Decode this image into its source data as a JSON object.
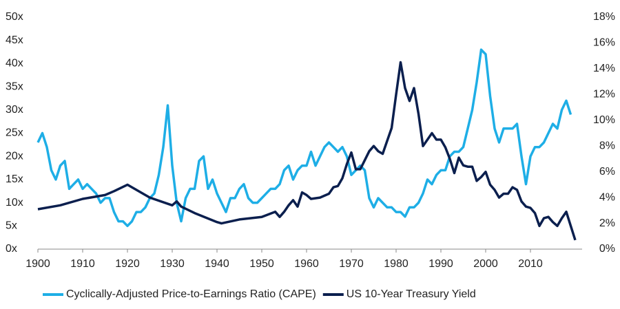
{
  "chart_data": {
    "type": "line",
    "xlim": [
      1900,
      2020
    ],
    "xticks": [
      1900,
      1910,
      1920,
      1930,
      1940,
      1950,
      1960,
      1970,
      1980,
      1990,
      2000,
      2010
    ],
    "ylim": [
      0,
      50
    ],
    "yticks": [
      {
        "value": 0,
        "label": "0x"
      },
      {
        "value": 5,
        "label": "5x"
      },
      {
        "value": 10,
        "label": "10x"
      },
      {
        "value": 15,
        "label": "15x"
      },
      {
        "value": 20,
        "label": "20x"
      },
      {
        "value": 25,
        "label": "25x"
      },
      {
        "value": 30,
        "label": "30x"
      },
      {
        "value": 35,
        "label": "35x"
      },
      {
        "value": 40,
        "label": "40x"
      },
      {
        "value": 45,
        "label": "45x"
      },
      {
        "value": 50,
        "label": "50x"
      }
    ],
    "y2lim": [
      0,
      18
    ],
    "y2ticks": [
      {
        "value": 0,
        "label": "0%"
      },
      {
        "value": 2,
        "label": "2%"
      },
      {
        "value": 4,
        "label": "4%"
      },
      {
        "value": 6,
        "label": "6%"
      },
      {
        "value": 8,
        "label": "8%"
      },
      {
        "value": 10,
        "label": "10%"
      },
      {
        "value": 12,
        "label": "12%"
      },
      {
        "value": 14,
        "label": "14%"
      },
      {
        "value": 16,
        "label": "16%"
      },
      {
        "value": 18,
        "label": "18%"
      }
    ],
    "series": [
      {
        "name": "Cyclically-Adjusted Price-to-Earnings Ratio (CAPE)",
        "color": "#1eaee6",
        "x": [
          1900,
          1901,
          1902,
          1903,
          1904,
          1905,
          1906,
          1907,
          1908,
          1909,
          1910,
          1911,
          1912,
          1913,
          1914,
          1915,
          1916,
          1917,
          1918,
          1919,
          1920,
          1921,
          1922,
          1923,
          1924,
          1925,
          1926,
          1927,
          1928,
          1929,
          1930,
          1931,
          1932,
          1933,
          1934,
          1935,
          1936,
          1937,
          1938,
          1939,
          1940,
          1941,
          1942,
          1943,
          1944,
          1945,
          1946,
          1947,
          1948,
          1949,
          1950,
          1951,
          1952,
          1953,
          1954,
          1955,
          1956,
          1957,
          1958,
          1959,
          1960,
          1961,
          1962,
          1963,
          1964,
          1965,
          1966,
          1967,
          1968,
          1969,
          1970,
          1971,
          1972,
          1973,
          1974,
          1975,
          1976,
          1977,
          1978,
          1979,
          1980,
          1981,
          1982,
          1983,
          1984,
          1985,
          1986,
          1987,
          1988,
          1989,
          1990,
          1991,
          1992,
          1993,
          1994,
          1995,
          1996,
          1997,
          1998,
          1999,
          2000,
          2001,
          2002,
          2003,
          2004,
          2005,
          2006,
          2007,
          2008,
          2009,
          2010,
          2011,
          2012,
          2013,
          2014,
          2015,
          2016,
          2017,
          2018,
          2019
        ],
        "values": [
          23,
          25,
          22,
          17,
          15,
          18,
          19,
          13,
          14,
          15,
          13,
          14,
          13,
          12,
          10,
          11,
          11,
          8,
          6,
          6,
          5,
          6,
          8,
          8,
          9,
          11,
          12,
          16,
          22,
          31,
          18,
          10,
          6,
          11,
          13,
          13,
          19,
          20,
          13,
          15,
          12,
          10,
          8,
          11,
          11,
          13,
          14,
          11,
          10,
          10,
          11,
          12,
          13,
          13,
          14,
          17,
          18,
          15,
          17,
          18,
          18,
          21,
          18,
          20,
          22,
          23,
          22,
          21,
          22,
          20,
          16,
          17,
          18,
          17,
          11,
          9,
          11,
          10,
          9,
          9,
          8,
          8,
          7,
          9,
          9,
          10,
          12,
          15,
          14,
          16,
          17,
          17,
          20,
          21,
          21,
          22,
          26,
          30,
          36,
          43,
          42,
          33,
          26,
          23,
          26,
          26,
          26,
          27,
          20,
          14,
          20,
          22,
          22,
          23,
          25,
          27,
          26,
          30,
          32,
          29
        ]
      },
      {
        "name": "US 10-Year Treasury Yield",
        "color": "#0b1f4e",
        "axis": "y2",
        "x": [
          1900,
          1905,
          1910,
          1915,
          1917,
          1920,
          1921,
          1925,
          1930,
          1931,
          1932,
          1935,
          1940,
          1941,
          1945,
          1950,
          1953,
          1954,
          1955,
          1956,
          1957,
          1958,
          1959,
          1960,
          1961,
          1963,
          1965,
          1966,
          1967,
          1968,
          1969,
          1970,
          1971,
          1972,
          1973,
          1974,
          1975,
          1976,
          1977,
          1978,
          1979,
          1980,
          1981,
          1982,
          1983,
          1984,
          1985,
          1986,
          1987,
          1988,
          1989,
          1990,
          1991,
          1992,
          1993,
          1994,
          1995,
          1996,
          1997,
          1998,
          1999,
          2000,
          2001,
          2002,
          2003,
          2004,
          2005,
          2006,
          2007,
          2008,
          2009,
          2010,
          2011,
          2012,
          2013,
          2014,
          2015,
          2016,
          2017,
          2018,
          2019,
          2020
        ],
        "values": [
          3.1,
          3.4,
          3.9,
          4.2,
          4.5,
          5.0,
          4.8,
          4.0,
          3.4,
          3.7,
          3.3,
          2.8,
          2.1,
          2.0,
          2.3,
          2.5,
          2.9,
          2.5,
          2.9,
          3.4,
          3.8,
          3.3,
          4.4,
          4.2,
          3.9,
          4.0,
          4.3,
          4.8,
          4.9,
          5.5,
          6.6,
          7.5,
          6.2,
          6.2,
          6.9,
          7.6,
          8.0,
          7.6,
          7.4,
          8.4,
          9.4,
          12,
          14.5,
          12.5,
          11.5,
          12.5,
          10.5,
          8,
          8.5,
          9,
          8.5,
          8.5,
          7.9,
          7.0,
          5.9,
          7.1,
          6.5,
          6.4,
          6.4,
          5.3,
          5.6,
          6.0,
          5.0,
          4.6,
          4.0,
          4.3,
          4.3,
          4.8,
          4.6,
          3.7,
          3.3,
          3.2,
          2.8,
          1.8,
          2.4,
          2.5,
          2.1,
          1.8,
          2.4,
          2.9,
          1.8,
          0.7
        ]
      }
    ]
  }
}
